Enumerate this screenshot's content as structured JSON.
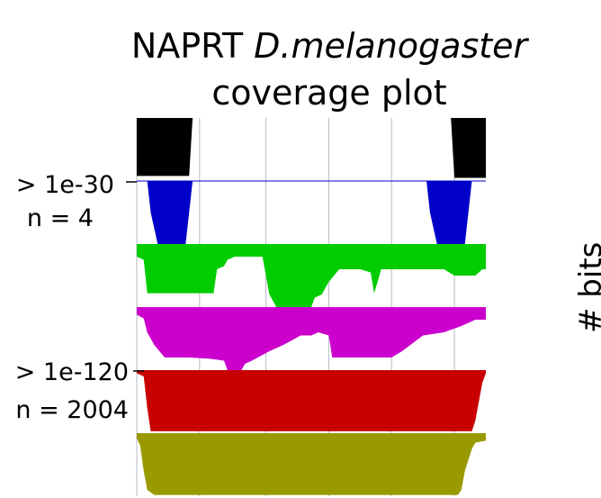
{
  "chart_data": {
    "type": "area",
    "title_plain": "NAPRT",
    "title_italic": "D.melanogaster",
    "subtitle": "coverage plot",
    "ylabel": "# bits",
    "band_labels": [
      {
        "threshold": "> 1e-30",
        "n": "n = 4"
      },
      {
        "threshold": "> 1e-120",
        "n": "n = 2004"
      }
    ],
    "x_range": [
      0,
      100
    ],
    "grid_x": [
      0,
      18,
      37,
      55,
      73,
      91
    ],
    "bands": [
      {
        "color": "#000000",
        "points": [
          [
            0,
            0.92
          ],
          [
            1,
            0.92
          ],
          [
            2,
            0.92
          ],
          [
            4,
            0.92
          ],
          [
            8,
            0.92
          ],
          [
            15,
            0.92
          ],
          [
            16,
            0
          ],
          [
            90,
            0
          ],
          [
            91,
            0.95
          ],
          [
            96,
            0.95
          ],
          [
            97,
            0.95
          ],
          [
            98,
            0.95
          ],
          [
            100,
            0.95
          ]
        ]
      },
      {
        "color": "#0000c8",
        "points": [
          [
            0,
            0
          ],
          [
            3,
            0
          ],
          [
            4,
            0.5
          ],
          [
            6,
            1
          ],
          [
            14,
            1
          ],
          [
            15,
            0.5
          ],
          [
            16,
            0
          ],
          [
            83,
            0
          ],
          [
            84,
            0.5
          ],
          [
            86,
            1
          ],
          [
            94,
            1
          ],
          [
            95,
            0.5
          ],
          [
            96,
            0
          ],
          [
            100,
            0
          ]
        ]
      },
      {
        "color": "#00cc00",
        "points": [
          [
            0,
            0.2
          ],
          [
            2,
            0.25
          ],
          [
            3,
            0.78
          ],
          [
            17,
            0.78
          ],
          [
            22,
            0.78
          ],
          [
            23,
            0.4
          ],
          [
            25,
            0.35
          ],
          [
            26,
            0.25
          ],
          [
            28,
            0.2
          ],
          [
            36,
            0.2
          ],
          [
            38,
            0.8
          ],
          [
            40,
            1
          ],
          [
            50,
            1
          ],
          [
            51,
            0.85
          ],
          [
            53,
            0.8
          ],
          [
            55,
            0.6
          ],
          [
            58,
            0.4
          ],
          [
            64,
            0.4
          ],
          [
            67,
            0.45
          ],
          [
            68,
            0.78
          ],
          [
            69,
            0.6
          ],
          [
            70,
            0.4
          ],
          [
            73,
            0.4
          ],
          [
            79,
            0.4
          ],
          [
            88,
            0.4
          ],
          [
            91,
            0.5
          ],
          [
            97,
            0.5
          ],
          [
            99,
            0.4
          ],
          [
            100,
            0.4
          ]
        ]
      },
      {
        "color": "#cc00cc",
        "points": [
          [
            0,
            0.12
          ],
          [
            2,
            0.18
          ],
          [
            3,
            0.4
          ],
          [
            5,
            0.6
          ],
          [
            8,
            0.8
          ],
          [
            15,
            0.8
          ],
          [
            21,
            0.82
          ],
          [
            25,
            0.85
          ],
          [
            26,
            1
          ],
          [
            30,
            1
          ],
          [
            31,
            0.9
          ],
          [
            33,
            0.85
          ],
          [
            38,
            0.7
          ],
          [
            42,
            0.6
          ],
          [
            47,
            0.45
          ],
          [
            50,
            0.45
          ],
          [
            52,
            0.4
          ],
          [
            55,
            0.45
          ],
          [
            56,
            0.8
          ],
          [
            73,
            0.8
          ],
          [
            76,
            0.7
          ],
          [
            82,
            0.45
          ],
          [
            88,
            0.4
          ],
          [
            93,
            0.3
          ],
          [
            97,
            0.2
          ],
          [
            100,
            0.2
          ]
        ]
      },
      {
        "color": "#c80000",
        "points": [
          [
            0,
            0.05
          ],
          [
            2,
            0.1
          ],
          [
            3,
            0.6
          ],
          [
            4,
            0.97
          ],
          [
            30,
            0.97
          ],
          [
            70,
            0.97
          ],
          [
            96,
            0.97
          ],
          [
            97,
            0.8
          ],
          [
            98,
            0.5
          ],
          [
            99,
            0.2
          ],
          [
            100,
            0.05
          ]
        ]
      },
      {
        "color": "#999900",
        "points": [
          [
            0,
            0.08
          ],
          [
            1,
            0.2
          ],
          [
            2,
            0.6
          ],
          [
            3,
            0.9
          ],
          [
            5,
            0.98
          ],
          [
            25,
            0.98
          ],
          [
            60,
            0.98
          ],
          [
            92,
            0.98
          ],
          [
            93,
            0.9
          ],
          [
            94,
            0.6
          ],
          [
            96,
            0.25
          ],
          [
            97,
            0.15
          ],
          [
            100,
            0.12
          ]
        ]
      }
    ]
  }
}
